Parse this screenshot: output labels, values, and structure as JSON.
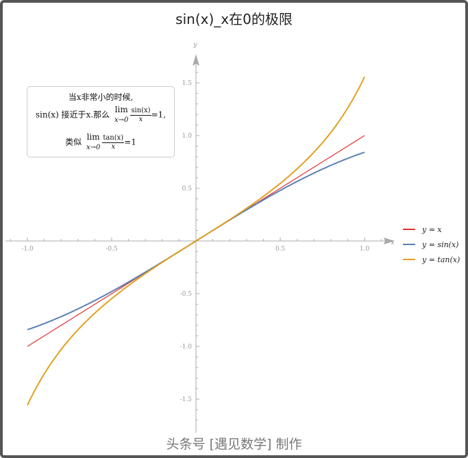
{
  "title": "sin(x)_x在0的极限",
  "footer": "头条号 [遇见数学] 制作",
  "note": {
    "line1": "当x非常小的时候,",
    "line2_prefix": "sin(x) 接近于x.那么",
    "lim": "lim",
    "lim_sub": "x→0",
    "frac1_num": "sin(x)",
    "frac_den": "x",
    "line2_suffix": "=1,",
    "line3_prefix": "类似",
    "frac2_num": "tan(x)",
    "line3_suffix": "=1"
  },
  "chart_data": {
    "type": "line",
    "title": "sin(x)_x在0的极限",
    "xlabel": "x",
    "ylabel": "y",
    "xlim": [
      -1,
      1
    ],
    "ylim": [
      -1.57,
      1.57
    ],
    "x_ticks": [
      "-1.0",
      "-0.5",
      "0.5",
      "1.0"
    ],
    "x_tick_values": [
      -1,
      -0.5,
      0.5,
      1
    ],
    "y_ticks": [
      "-1.5",
      "-1.0",
      "-0.5",
      "0.5",
      "1.0",
      "1.5"
    ],
    "y_tick_values": [
      -1.5,
      -1,
      -0.5,
      0.5,
      1,
      1.5
    ],
    "legend_position": "right",
    "series": [
      {
        "name": "y = x",
        "function": "x",
        "color": "#e03030"
      },
      {
        "name": "y = sin(x)",
        "function": "sin",
        "color": "#5b7fb5"
      },
      {
        "name": "y = tan(x)",
        "function": "tan",
        "color": "#e0a020"
      }
    ]
  }
}
